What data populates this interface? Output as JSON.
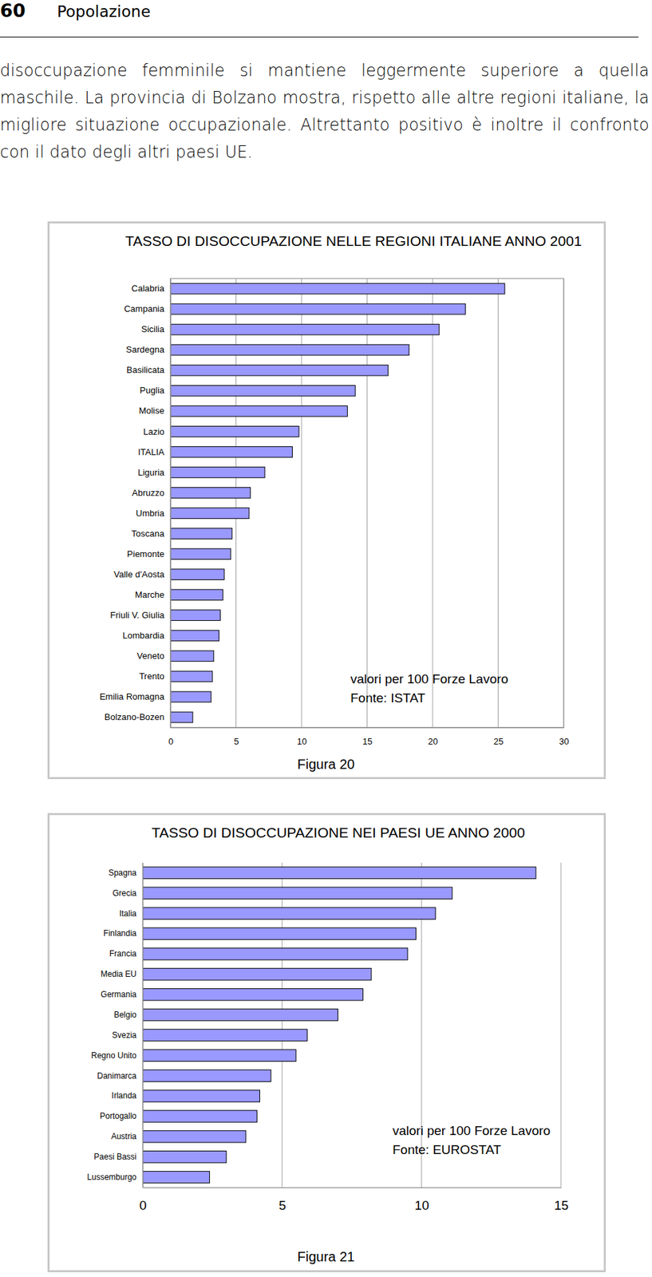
{
  "header": {
    "page_number": 60,
    "section": "Popolazione"
  },
  "text": {
    "paragraph": "disoccupazione femminile si mantiene leggermente superiore a quella maschile. La provincia di Bolzano mostra, rispetto alle altre regioni italiane, la migliore situazione occupazionale. Altrettanto positivo è inoltre il confronto con il dato degli altri paesi UE."
  },
  "chart_data": [
    {
      "type": "bar",
      "orientation": "horizontal",
      "title": "TASSO DI DISOCCUPAZIONE NELLE REGIONI ITALIANE ANNO 2001",
      "categories": [
        "Calabria",
        "Campania",
        "Sicilia",
        "Sardegna",
        "Basilicata",
        "Puglia",
        "Molise",
        "Lazio",
        "ITALIA",
        "Liguria",
        "Abruzzo",
        "Umbria",
        "Toscana",
        "Piemonte",
        "Valle d'Aosta",
        "Marche",
        "Friuli  V. Giulia",
        "Lombardia",
        "Veneto",
        "Trento",
        "Emilia Romagna",
        "Bolzano-Bozen"
      ],
      "values": [
        25.5,
        22.5,
        20.5,
        18.2,
        16.6,
        14.1,
        13.5,
        9.8,
        9.3,
        7.2,
        6.1,
        6.0,
        4.7,
        4.6,
        4.1,
        4.0,
        3.8,
        3.7,
        3.3,
        3.2,
        3.1,
        1.7
      ],
      "color": "#9999ff",
      "xlim": [
        0,
        30
      ],
      "xticks": [
        0,
        5,
        10,
        15,
        20,
        25,
        30
      ],
      "grid": true,
      "annotations": [
        "valori per 100 Forze Lavoro",
        "Fonte: ISTAT"
      ],
      "caption": "Figura 20"
    },
    {
      "type": "bar",
      "orientation": "horizontal",
      "title": "TASSO DI DISOCCUPAZIONE NEI PAESI UE ANNO 2000",
      "categories": [
        "Spagna",
        "Grecia",
        "Italia",
        "Finlandia",
        "Francia",
        "Media EU",
        "Germania",
        "Belgio",
        "Svezia",
        "Regno Unito",
        "Danimarca",
        "Irlanda",
        "Portogallo",
        "Austria",
        "Paesi Bassi",
        "Lussemburgo"
      ],
      "values": [
        14.1,
        11.1,
        10.5,
        9.8,
        9.5,
        8.2,
        7.9,
        7.0,
        5.9,
        5.5,
        4.6,
        4.2,
        4.1,
        3.7,
        3.0,
        2.4
      ],
      "color": "#9999ff",
      "xlim": [
        0,
        15
      ],
      "xticks": [
        0,
        5,
        10,
        15
      ],
      "grid": true,
      "annotations": [
        "valori per 100 Forze Lavoro",
        "Fonte: EUROSTAT"
      ],
      "caption": "Figura 21"
    }
  ]
}
